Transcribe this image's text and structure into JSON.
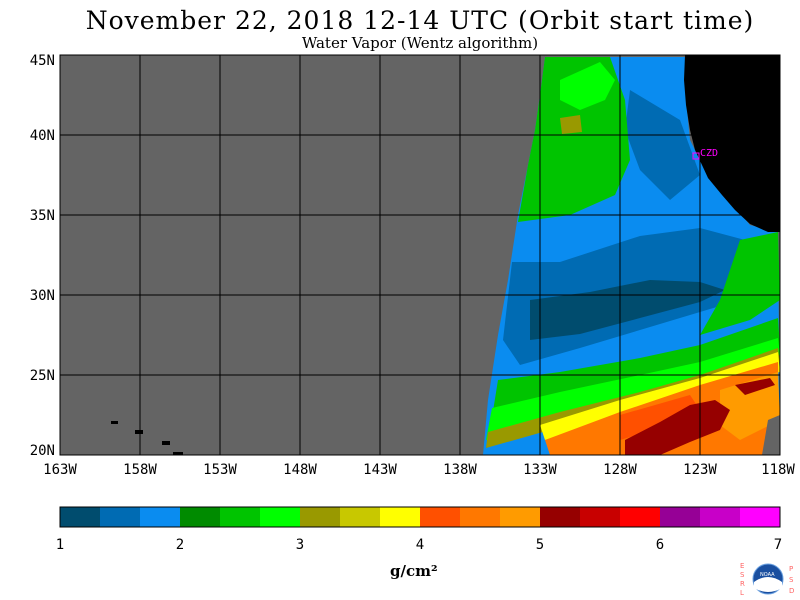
{
  "header": {
    "title": "November 22, 2018  12-14 UTC  (Orbit start time)",
    "subtitle": "Water Vapor (Wentz algorithm)"
  },
  "map": {
    "lat_labels": [
      "45N",
      "40N",
      "35N",
      "30N",
      "25N",
      "20N"
    ],
    "lon_labels": [
      "163W",
      "158W",
      "153W",
      "148W",
      "143W",
      "138W",
      "133W",
      "128W",
      "123W",
      "118W"
    ],
    "station_label": "CZD",
    "colors": {
      "no_data": "#646464",
      "land": "#000000",
      "grid": "#000000",
      "station": "#ff00ff"
    }
  },
  "colorbar": {
    "tick_labels": [
      "1",
      "2",
      "3",
      "4",
      "5",
      "6",
      "7"
    ],
    "units": "g/cm²",
    "colors": [
      "#004c6e",
      "#006bb3",
      "#0a8cf0",
      "#008b00",
      "#00c400",
      "#00ff00",
      "#999900",
      "#c8c800",
      "#ffff00",
      "#ff5000",
      "#ff7800",
      "#ff9b00",
      "#960000",
      "#c80000",
      "#ff0000",
      "#960096",
      "#c800c8",
      "#ff00ff"
    ]
  },
  "logo": {
    "text_left": "ESRL",
    "text_right": "PSD",
    "inner_text": "NOAA"
  }
}
